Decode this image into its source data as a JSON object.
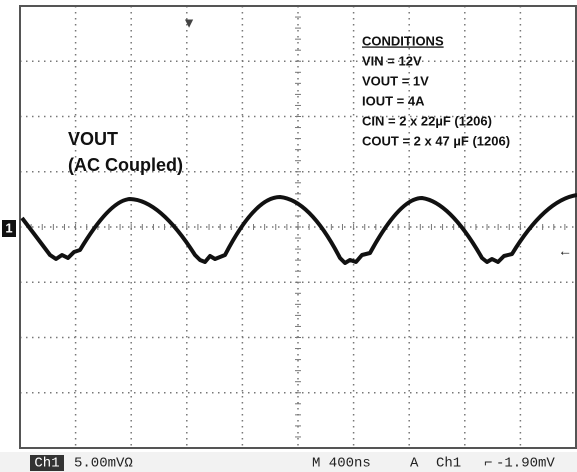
{
  "screen": {
    "channel_marker": "1",
    "conditions": {
      "heading": "CONDITIONS",
      "lines": [
        "VIN = 12V",
        "VOUT = 1V",
        "IOUT = 4A",
        "CIN = 2 x 22µF (1206)",
        "COUT = 2 x 47 µF (1206)"
      ]
    },
    "trace_label": [
      "VOUT",
      "(AC Coupled)"
    ],
    "status_bar": {
      "channel": "Ch1",
      "scale": "5.00mVΩ",
      "timebase": "M 400ns",
      "trigger_mode": "A",
      "trigger_source": "Ch1",
      "trigger_level": "-1.90mV"
    }
  }
}
